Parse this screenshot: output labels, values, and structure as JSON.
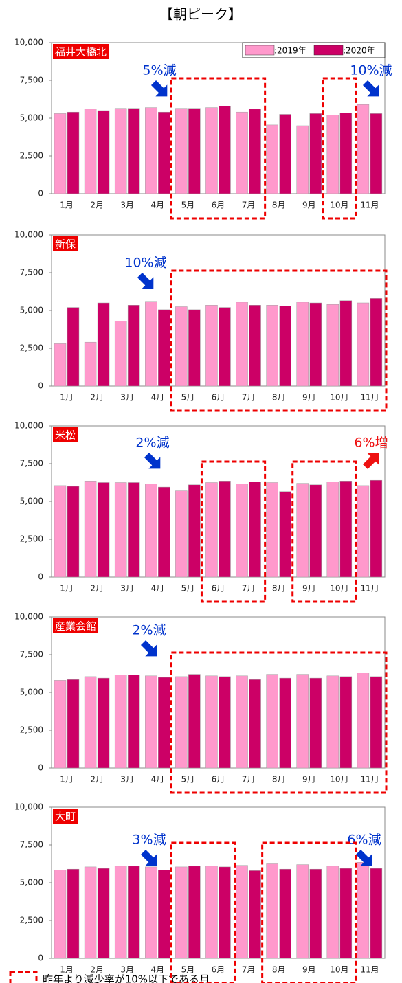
{
  "title": "【朝ピーク】",
  "note": "昨年より減少率が10%以下である月",
  "chart_data": [
    {
      "type": "bar",
      "title": "福井大橋北",
      "legend": "upper right",
      "categories": [
        "1月",
        "2月",
        "3月",
        "4月",
        "5月",
        "6月",
        "7月",
        "8月",
        "9月",
        "10月",
        "11月"
      ],
      "series": [
        {
          "name": ":2019年",
          "color": "#ff99cc",
          "values": [
            5300,
            5600,
            5650,
            5700,
            5650,
            5700,
            5400,
            4550,
            4500,
            5200,
            5900
          ]
        },
        {
          "name": ":2020年",
          "color": "#cc0066",
          "values": [
            5400,
            5500,
            5650,
            5400,
            5650,
            5800,
            5600,
            5250,
            5300,
            5350,
            5300
          ]
        }
      ],
      "ylim": [
        0,
        10000
      ],
      "yticks": [
        0,
        {
          "value": 2500,
          "label": "2,500"
        },
        {
          "value": 5000,
          "label": "5,000"
        },
        {
          "value": 7500,
          "label": "7,500"
        },
        {
          "value": 10000,
          "label": "10,000"
        }
      ],
      "annotations": [
        {
          "text": "5%減",
          "color": "#0033cc"
        },
        {
          "text": "10%減",
          "color": "#0033cc"
        }
      ]
    },
    {
      "type": "bar",
      "title": "新保",
      "categories": [
        "1月",
        "2月",
        "3月",
        "4月",
        "5月",
        "6月",
        "7月",
        "8月",
        "9月",
        "10月",
        "11月"
      ],
      "series": [
        {
          "name": ":2019年",
          "color": "#ff99cc",
          "values": [
            2800,
            2900,
            4300,
            5600,
            5250,
            5350,
            5550,
            5350,
            5550,
            5400,
            5500
          ]
        },
        {
          "name": ":2020年",
          "color": "#cc0066",
          "values": [
            5200,
            5500,
            5350,
            5050,
            5050,
            5200,
            5350,
            5300,
            5500,
            5650,
            5800
          ]
        }
      ],
      "ylim": [
        0,
        10000
      ],
      "yticks": [
        0,
        {
          "value": 2500,
          "label": "2,500"
        },
        {
          "value": 5000,
          "label": "5,000"
        },
        {
          "value": 7500,
          "label": "7,500"
        },
        {
          "value": 10000,
          "label": "10,000"
        }
      ],
      "annotations": [
        {
          "text": "10%減",
          "color": "#0033cc"
        }
      ]
    },
    {
      "type": "bar",
      "title": "米松",
      "categories": [
        "1月",
        "2月",
        "3月",
        "4月",
        "5月",
        "6月",
        "7月",
        "8月",
        "9月",
        "10月",
        "11月"
      ],
      "series": [
        {
          "name": ":2019年",
          "color": "#ff99cc",
          "values": [
            6050,
            6350,
            6250,
            6150,
            5700,
            6250,
            6150,
            6250,
            6200,
            6300,
            6050
          ]
        },
        {
          "name": ":2020年",
          "color": "#cc0066",
          "values": [
            6000,
            6250,
            6250,
            5950,
            6100,
            6350,
            6300,
            5650,
            6100,
            6350,
            6400
          ]
        }
      ],
      "ylim": [
        0,
        10000
      ],
      "yticks": [
        0,
        {
          "value": 2500,
          "label": "2,500"
        },
        {
          "value": 5000,
          "label": "5,000"
        },
        {
          "value": 7500,
          "label": "7,500"
        },
        {
          "value": 10000,
          "label": "10,000"
        }
      ],
      "annotations": [
        {
          "text": "2%減",
          "color": "#0033cc"
        },
        {
          "text": "6%増",
          "color": "#ee1111"
        }
      ]
    },
    {
      "type": "bar",
      "title": "産業会館",
      "categories": [
        "1月",
        "2月",
        "3月",
        "4月",
        "5月",
        "6月",
        "7月",
        "8月",
        "9月",
        "10月",
        "11月"
      ],
      "series": [
        {
          "name": ":2019年",
          "color": "#ff99cc",
          "values": [
            5800,
            6050,
            6150,
            6100,
            6050,
            6100,
            6100,
            6200,
            6200,
            6100,
            6300
          ]
        },
        {
          "name": ":2020年",
          "color": "#cc0066",
          "values": [
            5850,
            5950,
            6150,
            6000,
            6200,
            6050,
            5850,
            5950,
            5950,
            6050,
            6050
          ]
        }
      ],
      "ylim": [
        0,
        10000
      ],
      "yticks": [
        0,
        {
          "value": 2500,
          "label": "2,500"
        },
        {
          "value": 5000,
          "label": "5,000"
        },
        {
          "value": 7500,
          "label": "7,500"
        },
        {
          "value": 10000,
          "label": "10,000"
        }
      ],
      "annotations": [
        {
          "text": "2%減",
          "color": "#0033cc"
        }
      ]
    },
    {
      "type": "bar",
      "title": "大町",
      "categories": [
        "1月",
        "2月",
        "3月",
        "4月",
        "5月",
        "6月",
        "7月",
        "8月",
        "9月",
        "10月",
        "11月"
      ],
      "series": [
        {
          "name": ":2019年",
          "color": "#ff99cc",
          "values": [
            5850,
            6050,
            6100,
            6050,
            6050,
            6100,
            6150,
            6250,
            6200,
            6100,
            6350
          ]
        },
        {
          "name": ":2020年",
          "color": "#cc0066",
          "values": [
            5900,
            5950,
            6100,
            5850,
            6100,
            6050,
            5800,
            5900,
            5900,
            5950,
            5950
          ]
        }
      ],
      "ylim": [
        0,
        10000
      ],
      "yticks": [
        0,
        {
          "value": 2500,
          "label": "2,500"
        },
        {
          "value": 5000,
          "label": "5,000"
        },
        {
          "value": 7500,
          "label": "7,500"
        },
        {
          "value": 10000,
          "label": "10,000"
        }
      ],
      "annotations": [
        {
          "text": "3%減",
          "color": "#0033cc"
        },
        {
          "text": "6%減",
          "color": "#0033cc"
        }
      ]
    }
  ]
}
